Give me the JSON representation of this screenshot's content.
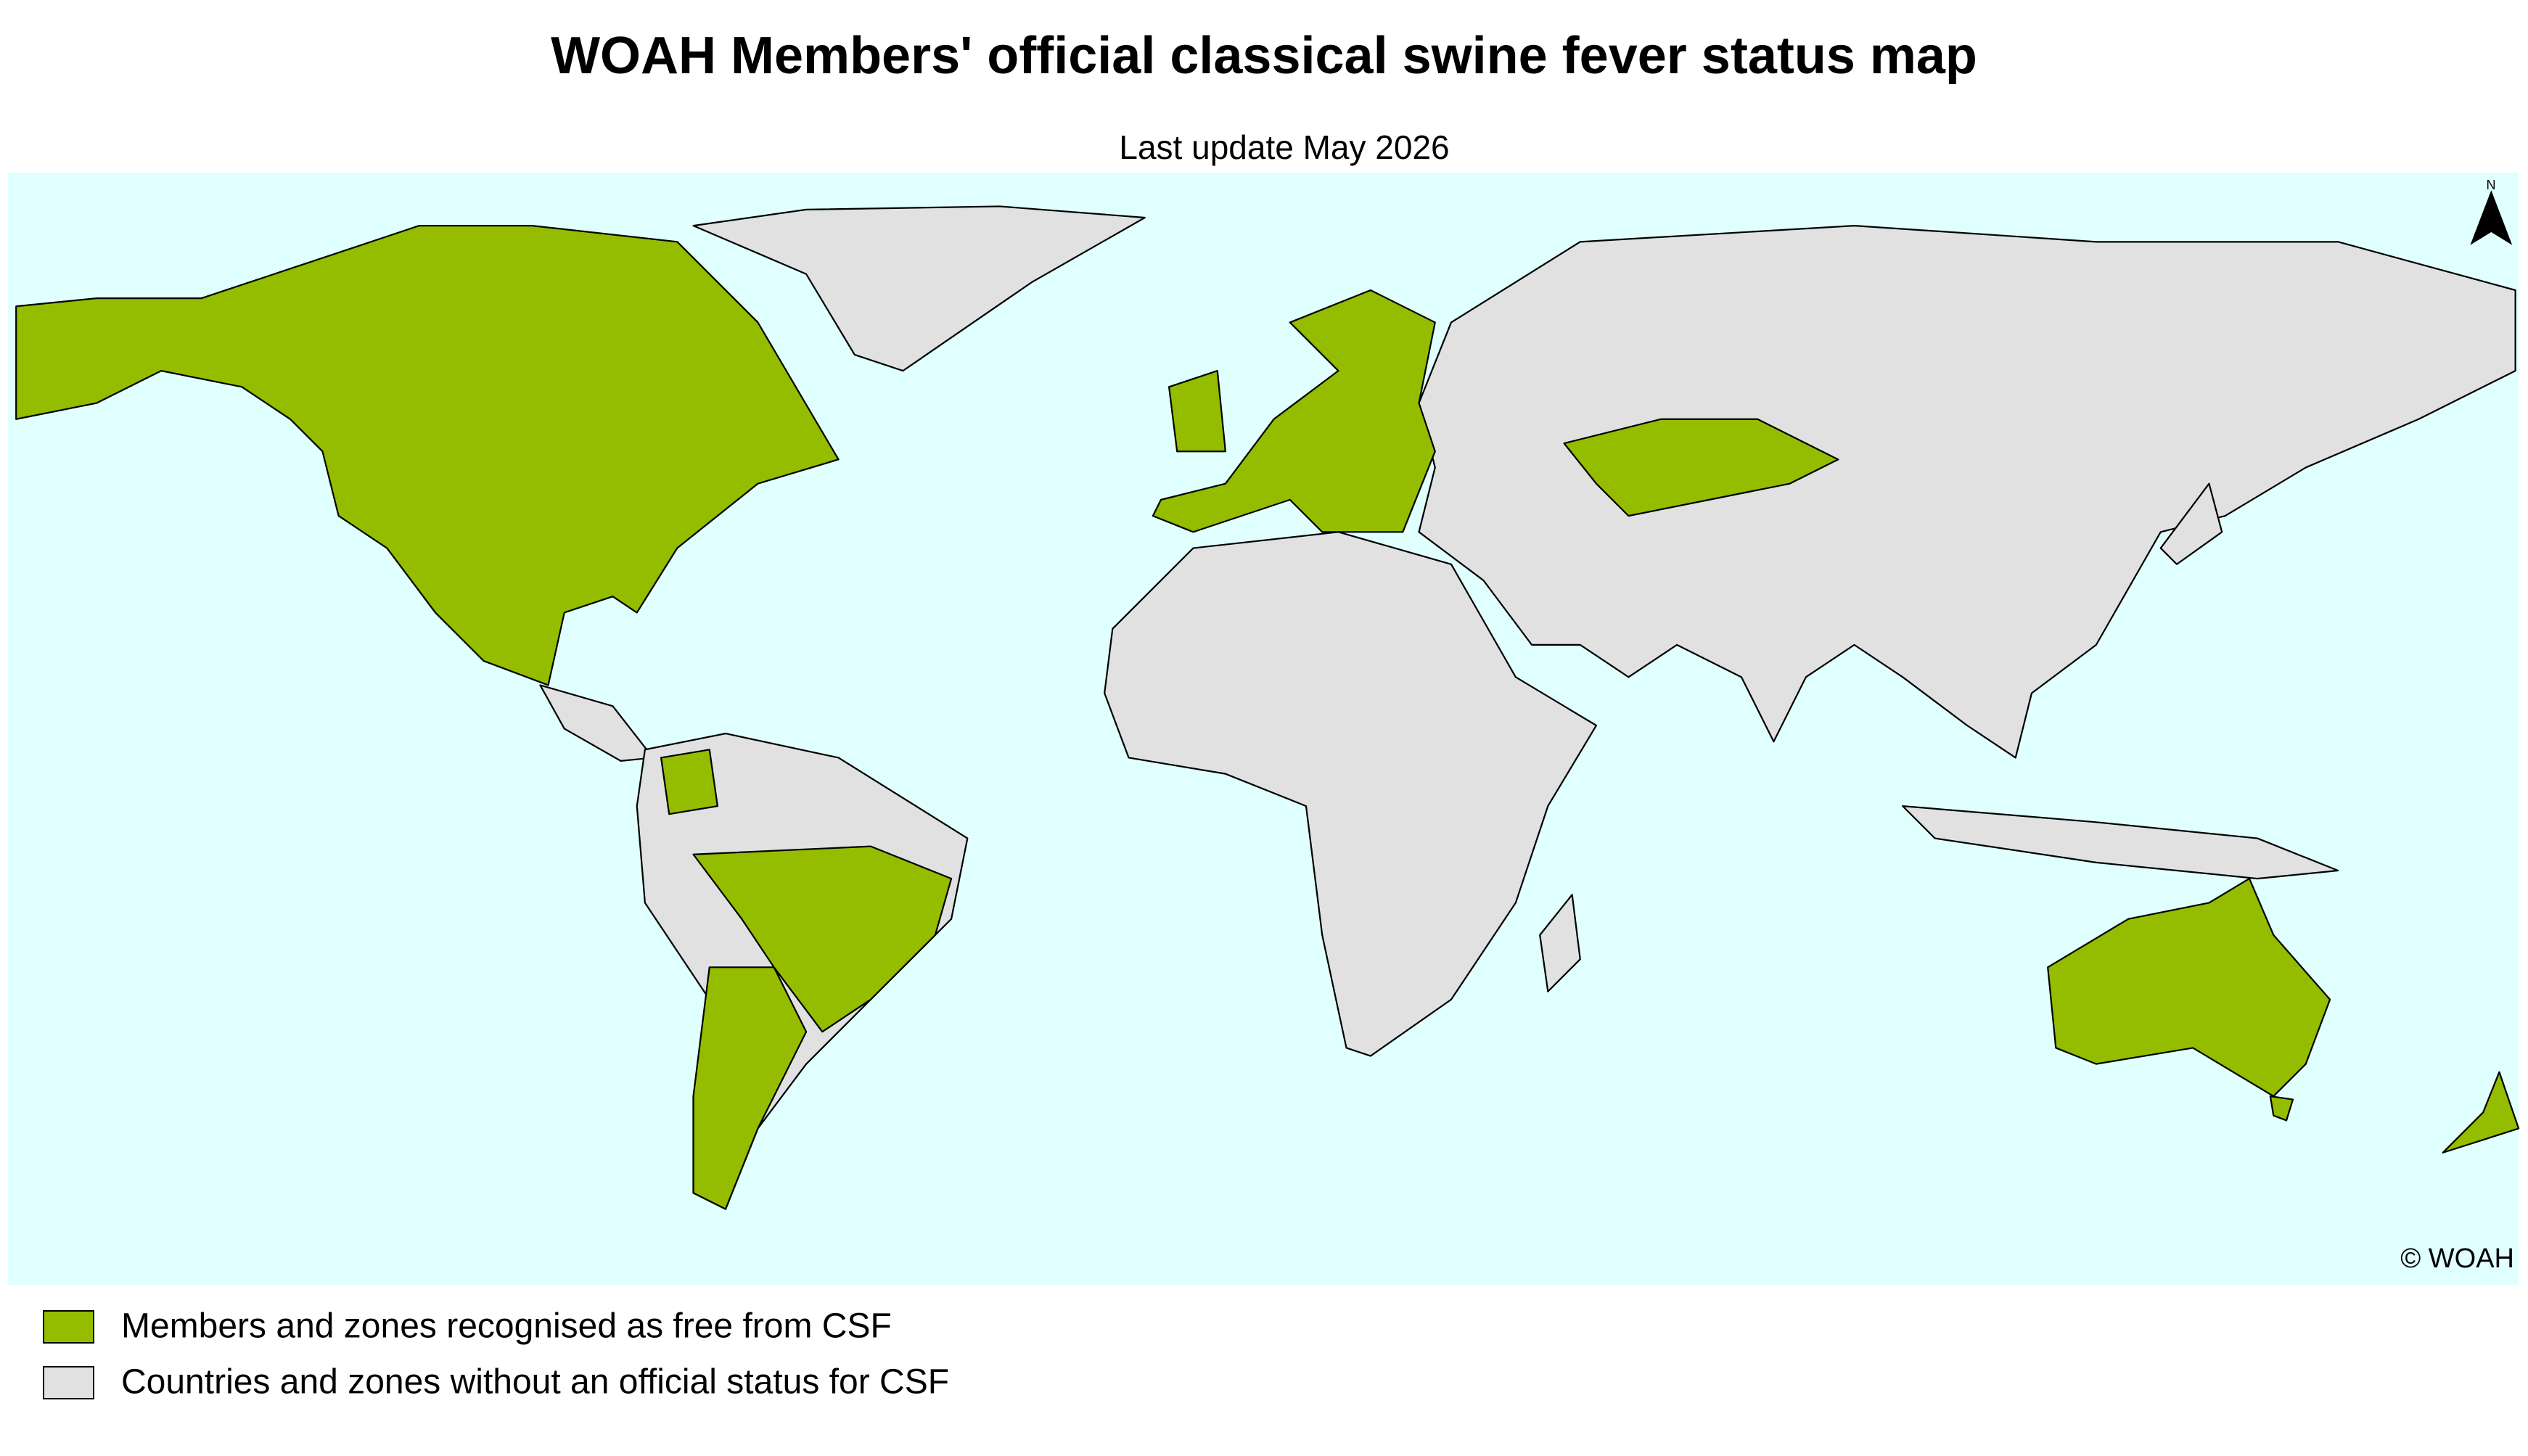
{
  "title": "WOAH Members' official classical swine fever status map",
  "subtitle": "Last update May 2026",
  "north_label": "N",
  "copyright": "© WOAH",
  "legend": [
    {
      "label": "Members and zones recognised as free from CSF",
      "color": "#94bd00"
    },
    {
      "label": "Countries and zones without an official status for CSF",
      "color": "#e1e1e1"
    }
  ]
}
